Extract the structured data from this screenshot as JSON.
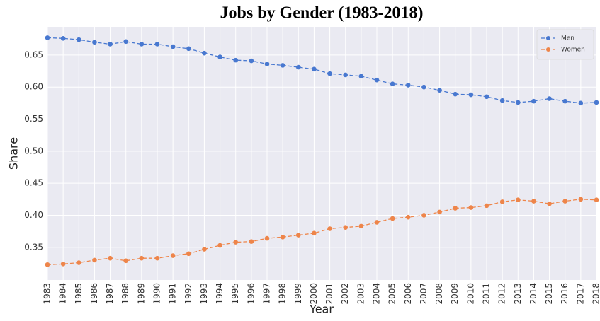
{
  "chart_data": {
    "type": "line",
    "title": "Jobs by Gender (1983-2018)",
    "x_label": "Year",
    "y_label": "Share",
    "categories": [
      "1983",
      "1984",
      "1985",
      "1986",
      "1987",
      "1988",
      "1989",
      "1990",
      "1991",
      "1992",
      "1993",
      "1994",
      "1995",
      "1996",
      "1997",
      "1998",
      "1999",
      "2000",
      "2001",
      "2002",
      "2003",
      "2004",
      "2005",
      "2006",
      "2007",
      "2008",
      "2009",
      "2010",
      "2011",
      "2012",
      "2013",
      "2014",
      "2015",
      "2016",
      "2017",
      "2018"
    ],
    "series": [
      {
        "name": "Men",
        "color": "#4878d0",
        "values": [
          0.677,
          0.676,
          0.674,
          0.67,
          0.667,
          0.671,
          0.667,
          0.667,
          0.663,
          0.66,
          0.653,
          0.647,
          0.642,
          0.641,
          0.636,
          0.634,
          0.631,
          0.628,
          0.621,
          0.619,
          0.617,
          0.611,
          0.605,
          0.603,
          0.6,
          0.595,
          0.589,
          0.588,
          0.585,
          0.579,
          0.576,
          0.578,
          0.582,
          0.578,
          0.575,
          0.576
        ]
      },
      {
        "name": "Women",
        "color": "#ee854a",
        "values": [
          0.323,
          0.324,
          0.326,
          0.33,
          0.333,
          0.329,
          0.333,
          0.333,
          0.337,
          0.34,
          0.347,
          0.353,
          0.358,
          0.359,
          0.364,
          0.366,
          0.369,
          0.372,
          0.379,
          0.381,
          0.383,
          0.389,
          0.395,
          0.397,
          0.4,
          0.405,
          0.411,
          0.412,
          0.415,
          0.421,
          0.424,
          0.422,
          0.418,
          0.422,
          0.425,
          0.424
        ]
      }
    ],
    "ylim": [
      0.299,
      0.694
    ],
    "yticks": [
      0.35,
      {
        "value": 0.4,
        "label": "0.40"
      },
      0.45,
      {
        "value": 0.5,
        "label": "0.50"
      },
      0.55,
      {
        "value": 0.6,
        "label": "0.60"
      },
      0.65
    ],
    "grid": true,
    "legend": "upper right",
    "line_style": "dashed"
  }
}
